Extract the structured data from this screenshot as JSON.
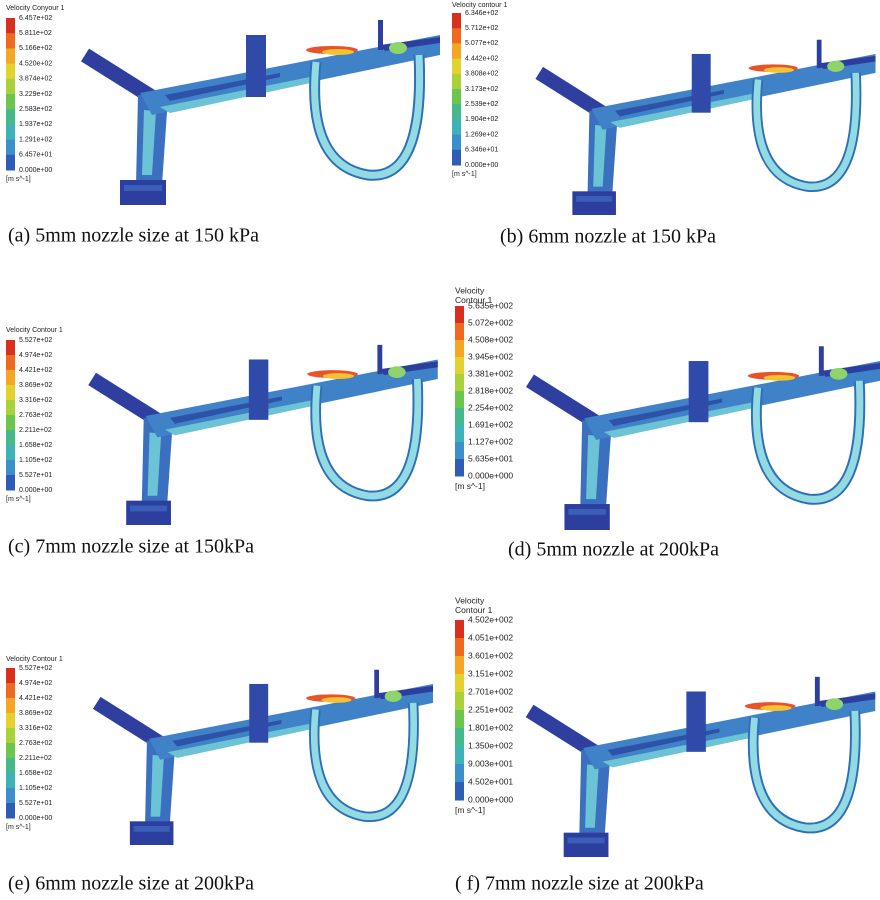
{
  "panels": [
    {
      "legend_title": [
        "Velocity Conyour 1"
      ],
      "legend_labels": [
        "6.457e+02",
        "5.811e+02",
        "5.166e+02",
        "4.520e+02",
        "3.874e+02",
        "3.229e+02",
        "2.583e+02",
        "1.937e+02",
        "1.291e+02",
        "6.457e+01",
        "0.000e+00"
      ],
      "unit": "[m s^-1]",
      "caption": "(a) 5mm nozzle size at 150 kPa"
    },
    {
      "legend_title": [
        "Velocity contour 1"
      ],
      "legend_labels": [
        "6.346e+02",
        "5.712e+02",
        "5.077e+02",
        "4.442e+02",
        "3.808e+02",
        "3.173e+02",
        "2.539e+02",
        "1.904e+02",
        "1.269e+02",
        "6.346e+01",
        "0.000e+00"
      ],
      "unit": "[m s^-1]",
      "caption": "(b) 6mm nozzle at 150 kPa"
    },
    {
      "legend_title": [
        "Velocity Contour 1"
      ],
      "legend_labels": [
        "5.527e+02",
        "4.974e+02",
        "4.421e+02",
        "3.869e+02",
        "3.316e+02",
        "2.763e+02",
        "2.211e+02",
        "1.658e+02",
        "1.105e+02",
        "5.527e+01",
        "0.000e+00"
      ],
      "unit": "[m s^-1]",
      "caption": "(c) 7mm nozzle size at 150kPa"
    },
    {
      "legend_title": [
        "Velocity",
        "Contour 1"
      ],
      "legend_labels": [
        "5.635e+002",
        "5.072e+002",
        "4.508e+002",
        "3.945e+002",
        "3.381e+002",
        "2.818e+002",
        "2.254e+002",
        "1.691e+002",
        "1.127e+002",
        "5.635e+001",
        "0.000e+000"
      ],
      "unit": "[m s^-1]",
      "caption": "(d) 5mm nozzle at 200kPa"
    },
    {
      "legend_title": [
        "Velocity Contour 1"
      ],
      "legend_labels": [
        "5.527e+02",
        "4.974e+02",
        "4.421e+02",
        "3.869e+02",
        "3.316e+02",
        "2.763e+02",
        "2.211e+02",
        "1.658e+02",
        "1.105e+02",
        "5.527e+01",
        "0.000e+00"
      ],
      "unit": "[m s^-1]",
      "caption": "(e) 6mm nozzle size at 200kPa"
    },
    {
      "legend_title": [
        "Velocity",
        "Contour 1"
      ],
      "legend_labels": [
        "4.502e+002",
        "4.051e+002",
        "3.601e+002",
        "3.151e+002",
        "2.701e+002",
        "2.251e+002",
        "1.801e+002",
        "1.350e+002",
        "9.003e+001",
        "4.502e+001",
        "0.000e+000"
      ],
      "unit": "[m s^-1]",
      "caption": "( f) 7mm nozzle size at 200kPa"
    }
  ]
}
